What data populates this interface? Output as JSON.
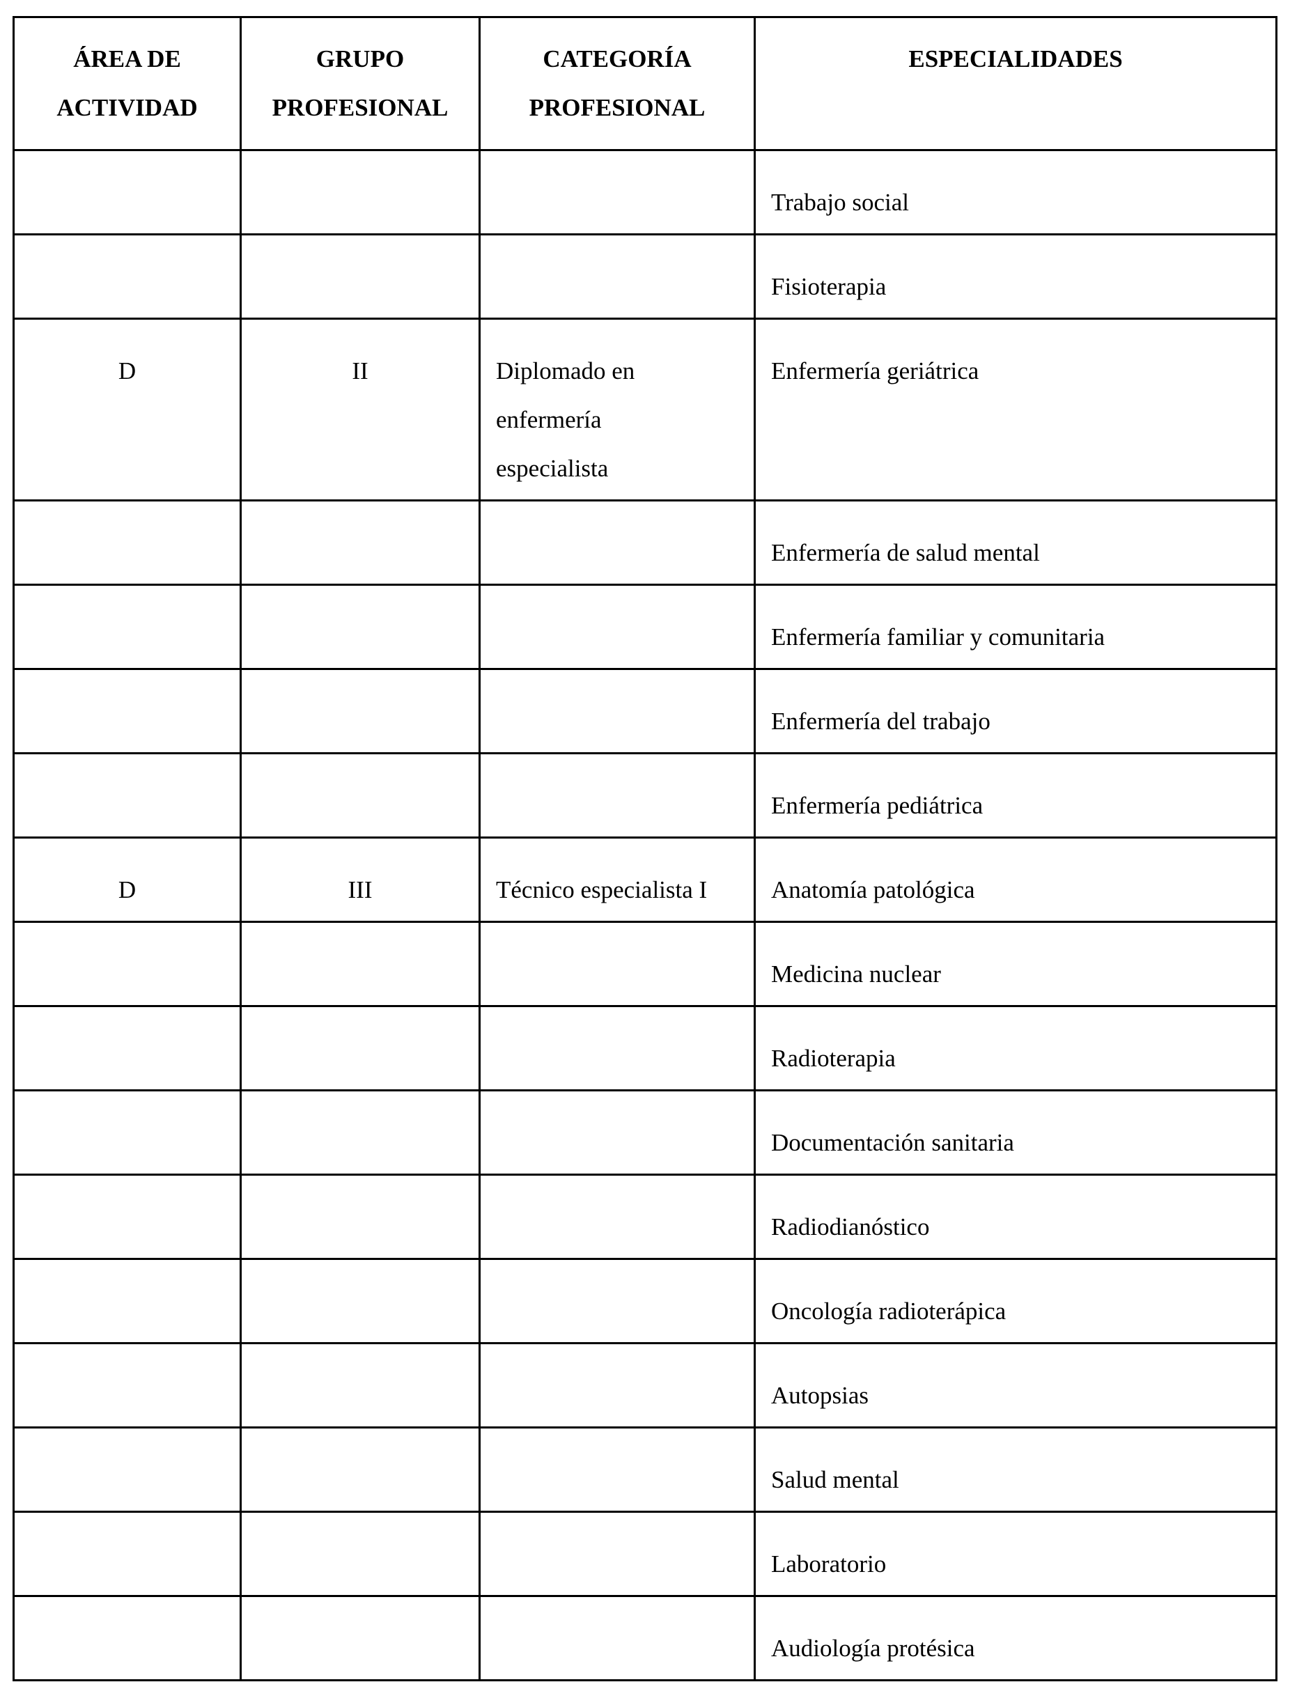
{
  "table": {
    "headers": [
      "ÁREA DE ACTIVIDAD",
      "GRUPO PROFESIONAL",
      "CATEGORÍA PROFESIONAL",
      "ESPECIALIDADES"
    ],
    "header_lines": [
      [
        "ÁREA DE",
        "ACTIVIDAD"
      ],
      [
        "GRUPO",
        "PROFESIONAL"
      ],
      [
        "CATEGORÍA",
        "PROFESIONAL"
      ],
      [
        "ESPECIALIDADES"
      ]
    ],
    "rows": [
      {
        "area": "",
        "grupo": "",
        "categoria": "",
        "especialidad": "Trabajo social"
      },
      {
        "area": "",
        "grupo": "",
        "categoria": "",
        "especialidad": "Fisioterapia"
      },
      {
        "area": "D",
        "grupo": "II",
        "categoria": "Diplomado en enfermería especialista",
        "categoria_lines": [
          "Diplomado en",
          "enfermería",
          "especialista"
        ],
        "especialidad": "Enfermería geriátrica"
      },
      {
        "area": "",
        "grupo": "",
        "categoria": "",
        "especialidad": "Enfermería de salud mental"
      },
      {
        "area": "",
        "grupo": "",
        "categoria": "",
        "especialidad": "Enfermería familiar y comunitaria"
      },
      {
        "area": "",
        "grupo": "",
        "categoria": "",
        "especialidad": "Enfermería del trabajo"
      },
      {
        "area": "",
        "grupo": "",
        "categoria": "",
        "especialidad": "Enfermería pediátrica"
      },
      {
        "area": "D",
        "grupo": "III",
        "categoria": "Técnico especialista I",
        "especialidad": "Anatomía patológica"
      },
      {
        "area": "",
        "grupo": "",
        "categoria": "",
        "especialidad": "Medicina nuclear"
      },
      {
        "area": "",
        "grupo": "",
        "categoria": "",
        "especialidad": "Radioterapia"
      },
      {
        "area": "",
        "grupo": "",
        "categoria": "",
        "especialidad": "Documentación sanitaria"
      },
      {
        "area": "",
        "grupo": "",
        "categoria": "",
        "especialidad": "Radiodianóstico"
      },
      {
        "area": "",
        "grupo": "",
        "categoria": "",
        "especialidad": "Oncología radioterápica"
      },
      {
        "area": "",
        "grupo": "",
        "categoria": "",
        "especialidad": "Autopsias"
      },
      {
        "area": "",
        "grupo": "",
        "categoria": "",
        "especialidad": "Salud mental"
      },
      {
        "area": "",
        "grupo": "",
        "categoria": "",
        "especialidad": "Laboratorio"
      },
      {
        "area": "",
        "grupo": "",
        "categoria": "",
        "especialidad": "Audiología protésica"
      }
    ]
  }
}
